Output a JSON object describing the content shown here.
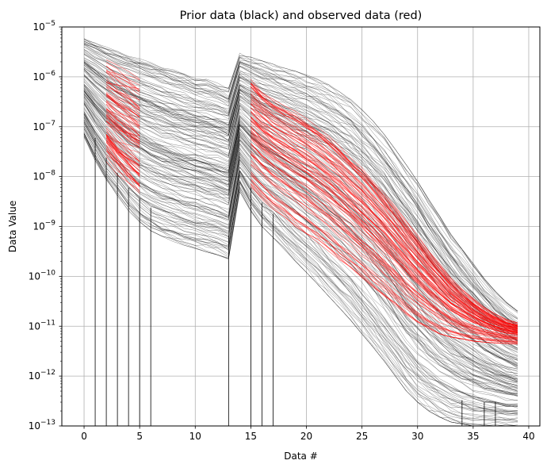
{
  "chart_data": {
    "type": "line",
    "title": "Prior data (black) and observed data (red)",
    "xlabel": "Data #",
    "ylabel": "Data Value",
    "xlim": [
      -2,
      41
    ],
    "ylim": [
      1e-13,
      1e-05
    ],
    "yscale": "log",
    "grid": true,
    "x_ticks": [
      0,
      5,
      10,
      15,
      20,
      25,
      30,
      35,
      40
    ],
    "y_ticks": [
      {
        "base": "10",
        "exp": "−13",
        "value": 1e-13
      },
      {
        "base": "10",
        "exp": "−12",
        "value": 1e-12
      },
      {
        "base": "10",
        "exp": "−11",
        "value": 1e-11
      },
      {
        "base": "10",
        "exp": "−10",
        "value": 1e-10
      },
      {
        "base": "10",
        "exp": "−9",
        "value": 1e-09
      },
      {
        "base": "10",
        "exp": "−8",
        "value": 1e-08
      },
      {
        "base": "10",
        "exp": "−7",
        "value": 1e-07
      },
      {
        "base": "10",
        "exp": "−6",
        "value": 1e-06
      },
      {
        "base": "10",
        "exp": "−5",
        "value": 1e-05
      }
    ],
    "series": [
      {
        "color": "#000000",
        "ensemble_size": 160,
        "x": [
          0,
          1,
          2,
          3,
          4,
          5,
          6,
          7,
          8,
          9,
          10,
          11,
          12,
          13,
          14,
          15,
          16,
          17,
          18,
          19,
          20,
          21,
          22,
          23,
          24,
          25,
          26,
          27,
          28,
          29,
          30,
          31,
          32,
          33,
          34,
          35,
          36,
          37,
          38,
          39
        ],
        "y_upper": [
          6e-06,
          5e-06,
          4e-06,
          3.3e-06,
          2.8e-06,
          2.4e-06,
          2e-06,
          1.7e-06,
          1.4e-06,
          1.2e-06,
          1e-06,
          9e-07,
          7.5e-07,
          6e-07,
          3e-06,
          2.5e-06,
          2.1e-06,
          1.8e-06,
          1.5e-06,
          1.3e-06,
          1.1e-06,
          9e-07,
          7e-07,
          5e-07,
          3.5e-07,
          2.2e-07,
          1.3e-07,
          7e-08,
          3.5e-08,
          1.7e-08,
          8e-09,
          3.5e-09,
          1.6e-09,
          7e-10,
          3.5e-10,
          1.8e-10,
          9e-11,
          5e-11,
          3e-11,
          2e-11
        ],
        "y_lower": [
          6e-08,
          2e-08,
          8e-09,
          4e-09,
          2e-09,
          1.2e-09,
          8e-10,
          6e-10,
          5e-10,
          4.2e-10,
          3.6e-10,
          3.1e-10,
          2.7e-10,
          2.2e-10,
          5e-09,
          2e-09,
          1e-09,
          6e-10,
          3.5e-10,
          2e-10,
          1.2e-10,
          7e-11,
          4e-11,
          2.3e-11,
          1.3e-11,
          7e-12,
          3.8e-12,
          2e-12,
          1e-12,
          5e-13,
          3e-13,
          2e-13,
          1.5e-13,
          1.2e-13,
          1.1e-13,
          1e-13,
          1e-13,
          1e-13,
          1e-13,
          1e-13
        ]
      },
      {
        "color": "#ff0000",
        "ensemble_size": 80,
        "segments": [
          {
            "x": [
              2,
              3,
              4,
              5
            ],
            "y_upper": [
              2.2e-06,
              1.7e-06,
              1.3e-06,
              9e-07
            ],
            "y_lower": [
              2e-08,
              1e-08,
              6e-09,
              4e-09
            ]
          },
          {
            "x": [
              15,
              16,
              17,
              18,
              19,
              20,
              21,
              22,
              23,
              24,
              25,
              26,
              27,
              28,
              29,
              30,
              31,
              32,
              33,
              34,
              35,
              36,
              37,
              38,
              39
            ],
            "y_upper": [
              1e-06,
              6e-07,
              4e-07,
              3e-07,
              2.3e-07,
              1.7e-07,
              1.2e-07,
              8e-08,
              5e-08,
              3e-08,
              1.8e-08,
              1e-08,
              5.5e-09,
              3e-09,
              1.5e-09,
              7.5e-10,
              3.8e-10,
              2e-10,
              1e-10,
              6e-11,
              3.8e-11,
              2.5e-11,
              1.8e-11,
              1.4e-11,
              1.2e-11
            ],
            "y_lower": [
              6e-09,
              3.5e-09,
              2.2e-09,
              1.5e-09,
              1e-09,
              7e-10,
              4.8e-10,
              3.2e-10,
              2.1e-10,
              1.4e-10,
              9e-11,
              6e-11,
              4e-11,
              2.6e-11,
              1.7e-11,
              1.2e-11,
              9e-12,
              7e-12,
              6e-12,
              5.5e-12,
              5e-12,
              4.8e-12,
              4.6e-12,
              4.5e-12,
              4.4e-12
            ]
          }
        ]
      }
    ],
    "dropouts": [
      1,
      2,
      3,
      4,
      5,
      6,
      13,
      15,
      16,
      17,
      34,
      36,
      37
    ]
  }
}
